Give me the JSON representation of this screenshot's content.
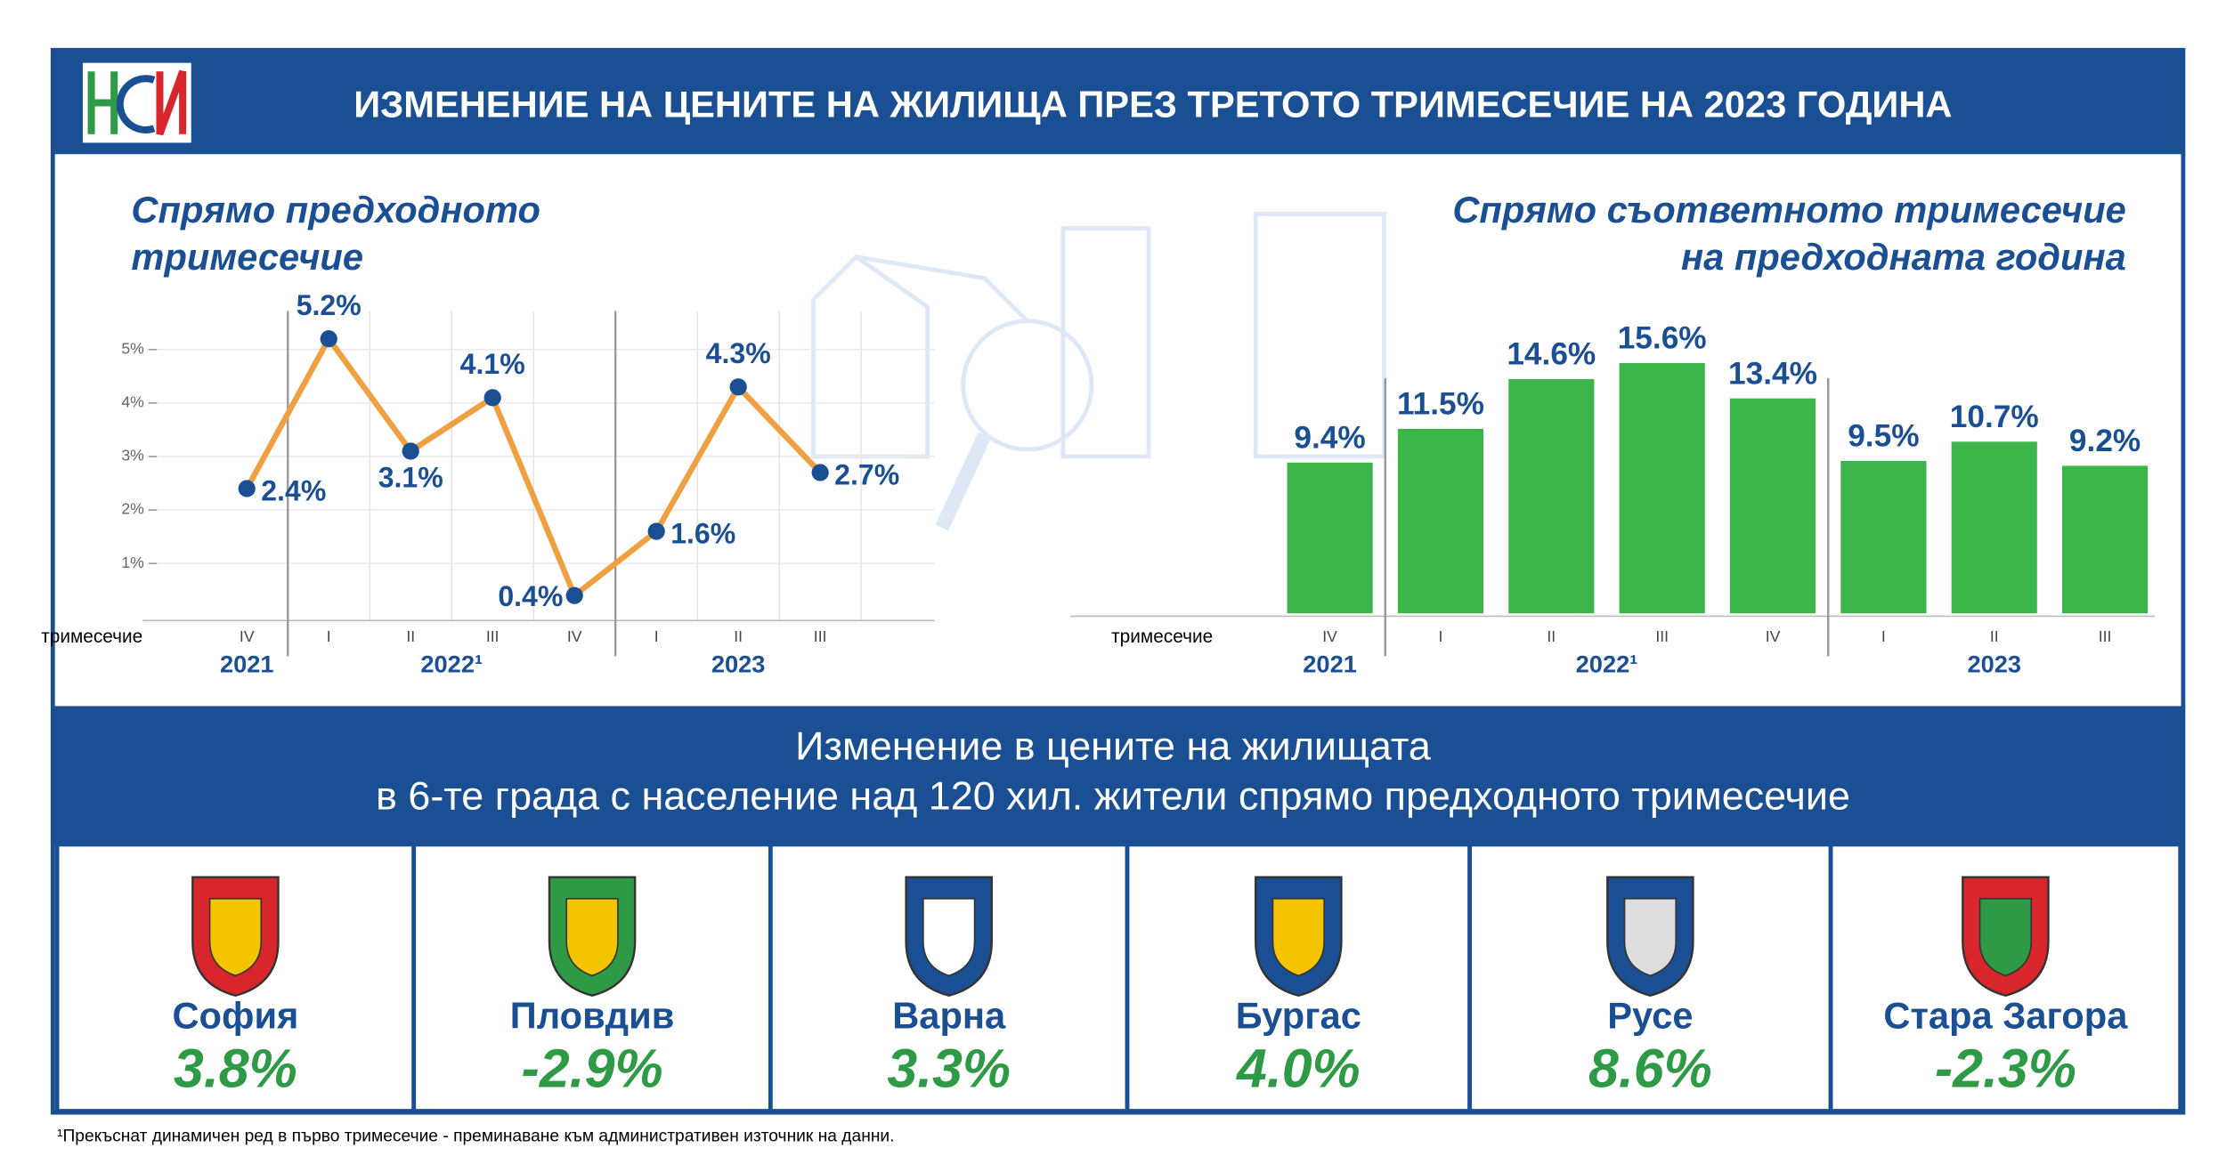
{
  "header": {
    "title": "ИЗМЕНЕНИЕ НА ЦЕНИТЕ НА ЖИЛИЩА ПРЕЗ ТРЕТОТО ТРИМЕСЕЧИЕ НА 2023 ГОДИНА"
  },
  "chart_data": [
    {
      "type": "line",
      "title": [
        "Спрямо предходното",
        "тримесечие"
      ],
      "x_label": "тримесечие",
      "categories": [
        "IV",
        "I",
        "II",
        "III",
        "IV",
        "I",
        "II",
        "III"
      ],
      "years": [
        "2021",
        "2022¹",
        "2023"
      ],
      "values": [
        2.4,
        5.2,
        3.1,
        4.1,
        0.4,
        1.6,
        4.3,
        2.7
      ],
      "value_labels": [
        "2.4%",
        "5.2%",
        "3.1%",
        "4.1%",
        "0.4%",
        "1.6%",
        "4.3%",
        "2.7%"
      ],
      "color": "#f0a040",
      "marker_color": "#1b4f93",
      "ylim": [
        0,
        5.8
      ],
      "yticks": [
        {
          "value": 1,
          "label": "1%"
        },
        {
          "value": 2,
          "label": "2%"
        },
        {
          "value": 3,
          "label": "3%"
        },
        {
          "value": 4,
          "label": "4%"
        },
        {
          "value": 5,
          "label": "5%"
        }
      ]
    },
    {
      "type": "bar",
      "title": [
        "Спрямо съответното тримесечие",
        "на предходната година"
      ],
      "x_label": "тримесечие",
      "categories": [
        "IV",
        "I",
        "II",
        "III",
        "IV",
        "I",
        "II",
        "III"
      ],
      "years": [
        "2021",
        "2022¹",
        "2023"
      ],
      "values": [
        9.4,
        11.5,
        14.6,
        15.6,
        13.4,
        9.5,
        10.7,
        9.2
      ],
      "value_labels": [
        "9.4%",
        "11.5%",
        "14.6%",
        "15.6%",
        "13.4%",
        "9.5%",
        "10.7%",
        "9.2%"
      ],
      "color": "#3cb54a",
      "ylim": [
        0,
        16
      ]
    }
  ],
  "band": {
    "lines": [
      "Изменение в цените на жилищата",
      "в 6-те града с население над 120 хил. жители спрямо предходното тримесечие"
    ]
  },
  "cities": [
    {
      "name": "София",
      "change": "3.8%"
    },
    {
      "name": "Пловдив",
      "change": "-2.9%"
    },
    {
      "name": "Варна",
      "change": "3.3%"
    },
    {
      "name": "Бургас",
      "change": "4.0%"
    },
    {
      "name": "Русе",
      "change": "8.6%"
    },
    {
      "name": "Стара Загора",
      "change": "-2.3%"
    }
  ],
  "footnote": "¹Прекъснат динамичен ред в първо тримесечие - преминаване към административен източник на данни."
}
